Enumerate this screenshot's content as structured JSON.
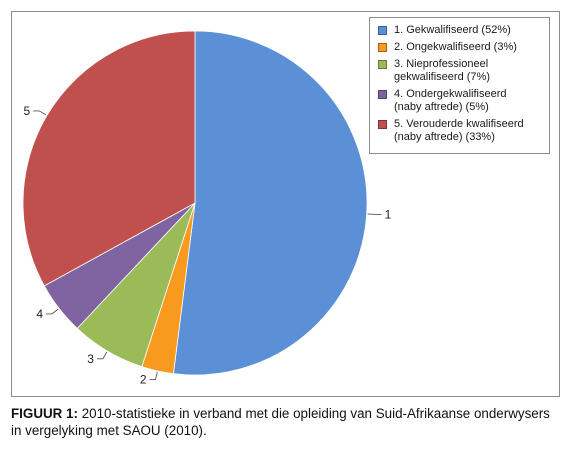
{
  "chart_data": {
    "type": "pie",
    "categories": [
      "1",
      "2",
      "3",
      "4",
      "5"
    ],
    "values": [
      52,
      3,
      7,
      5,
      33
    ],
    "colors": [
      "#5b8fd6",
      "#f79a1e",
      "#9bbb59",
      "#8064a2",
      "#c0504d"
    ],
    "legend": [
      "1. Gekwalifiseerd (52%)",
      "2. Ongekwalifiseerd (3%)",
      "3. Nieprofessioneel\ngekwalifiseerd (7%)",
      "4. Ondergekwalifiseerd\n(naby aftrede) (5%)",
      "5. Verouderde kwalifiseerd\n(naby aftrede) (33%)"
    ],
    "legend_position": "top-right",
    "start_angle": "12 o'clock",
    "direction": "clockwise"
  },
  "caption": {
    "label": "FIGUUR 1:",
    "text": " 2010-statistieke in verband met die opleiding van Suid-Afrikaanse onderwysers in vergelyking met SAOU (2010)."
  }
}
